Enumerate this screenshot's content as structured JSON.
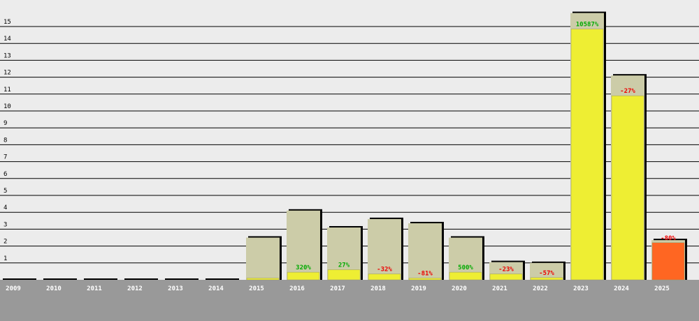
{
  "chart_data": {
    "type": "bar",
    "title": "",
    "xlabel": "",
    "ylabel": "",
    "ylim": [
      0,
      16.5
    ],
    "yticks": [
      1,
      2,
      3,
      4,
      5,
      6,
      7,
      8,
      9,
      10,
      11,
      12,
      13,
      14,
      15
    ],
    "grid": true,
    "categories": [
      "2009",
      "2010",
      "2011",
      "2012",
      "2013",
      "2014",
      "2015",
      "2016",
      "2017",
      "2018",
      "2019",
      "2020",
      "2021",
      "2022",
      "2023",
      "2024",
      "2025"
    ],
    "series": [
      {
        "values": [
          0,
          0,
          0,
          0,
          0,
          0,
          2.5,
          4.1,
          3.1,
          3.6,
          3.35,
          2.5,
          1.05,
          1.0,
          15.8,
          12.1,
          2.35
        ]
      },
      {
        "values": [
          0,
          0,
          0,
          0,
          0,
          0,
          0.1,
          0.45,
          0.6,
          0.35,
          0.1,
          0.45,
          0.35,
          0.13,
          14.85,
          10.9,
          2.2
        ]
      }
    ],
    "change_labels": [
      "",
      "",
      "",
      "",
      "",
      "",
      "",
      "320%",
      "27%",
      "-32%",
      "-81%",
      "500%",
      "-23%",
      "-57%",
      "10587%",
      "-27%",
      "-80%"
    ],
    "colors": {
      "background": "#ececec",
      "gridline": "#000000",
      "axis_band": "#999999",
      "outer_bar": "#cccca8",
      "inner_bar": "#eeee33",
      "inner_bar_current": "#ff6622",
      "bar_shadow": "#000000",
      "positive": "#00aa00",
      "negative": "#ee0000",
      "tick_text": "#000000",
      "category_text": "#ffffff"
    }
  }
}
